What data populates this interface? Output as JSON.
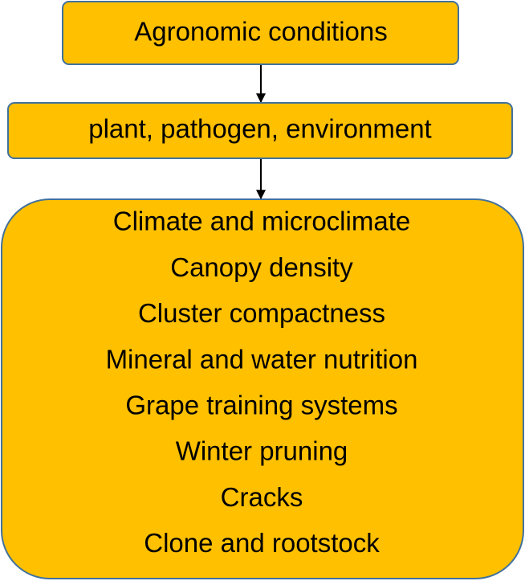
{
  "nodes": [
    {
      "label": "Agronomic conditions"
    },
    {
      "label": "plant, pathogen, environment"
    },
    {
      "items": [
        "Climate and microclimate",
        "Canopy density",
        "Cluster compactness",
        "Mineral and water nutrition",
        "Grape training systems",
        "Winter pruning",
        "Cracks",
        "Clone and rootstock"
      ]
    }
  ]
}
